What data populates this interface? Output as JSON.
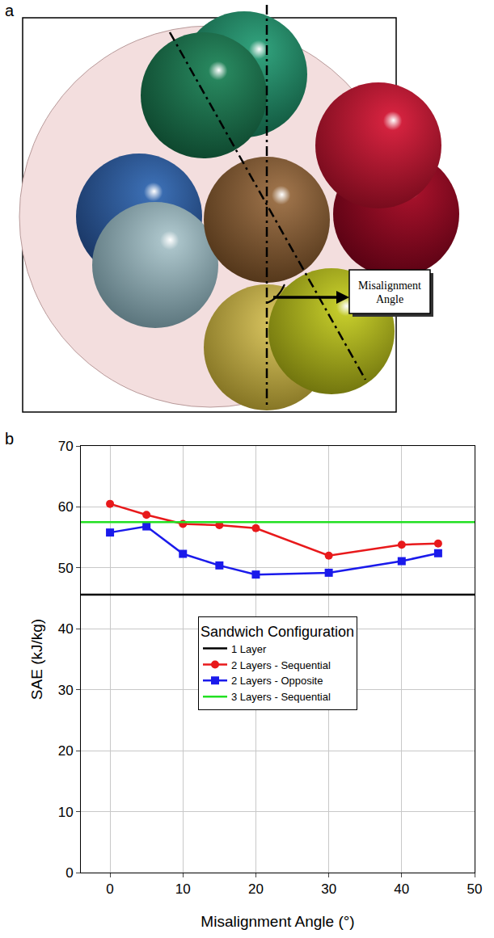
{
  "panel_labels": [
    "a",
    "b"
  ],
  "diagram": {
    "annotation": "Misalignment Angle"
  },
  "chart_data": {
    "type": "line",
    "legend_title": "Sandwich Configuration",
    "x_label": "Misalignment Angle (°)",
    "y_label": "SAE (kJ/kg)",
    "x": [
      0,
      5,
      10,
      15,
      20,
      30,
      40,
      45
    ],
    "series": [
      {
        "name": "1 Layer",
        "color": "#000000",
        "type": "hline",
        "value": 45.6
      },
      {
        "name": "2 Layers - Sequential",
        "color": "#e8191b",
        "marker": "circle",
        "values": [
          60.5,
          58.7,
          57.2,
          57.0,
          56.5,
          52.0,
          53.8,
          54.0
        ]
      },
      {
        "name": "2 Layers - Opposite",
        "color": "#1a1aeb",
        "marker": "square",
        "values": [
          55.8,
          56.8,
          52.3,
          50.4,
          48.9,
          49.2,
          51.1,
          52.4
        ]
      },
      {
        "name": "3 Layers - Sequential",
        "color": "#22e022",
        "type": "hline",
        "value": 57.5
      }
    ],
    "xlim": [
      -4,
      50
    ],
    "xticks": [
      0,
      10,
      20,
      30,
      40,
      50
    ],
    "ylim": [
      0,
      70
    ],
    "yticks": [
      0,
      10,
      20,
      30,
      40,
      50,
      60,
      70
    ],
    "grid": true,
    "legend": "center"
  }
}
